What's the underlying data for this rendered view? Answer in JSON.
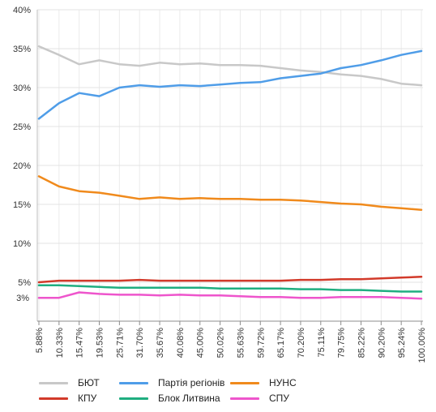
{
  "chart_data": {
    "type": "line",
    "title": "",
    "xlabel": "",
    "ylabel": "",
    "ylim": [
      0,
      40
    ],
    "y_ticks": [
      5,
      10,
      15,
      20,
      25,
      30,
      35,
      40
    ],
    "y_tick_labels": [
      "5%",
      "10%",
      "15%",
      "20%",
      "25%",
      "30%",
      "35%",
      "40%"
    ],
    "y_annotation": {
      "value": 3,
      "label": "3%"
    },
    "grid": true,
    "legend_position": "bottom",
    "categories": [
      "5.88%",
      "10.33%",
      "15.47%",
      "19.53%",
      "25.71%",
      "31.70%",
      "35.67%",
      "40.08%",
      "45.00%",
      "50.02%",
      "55.63%",
      "59.72%",
      "65.17%",
      "70.20%",
      "75.11%",
      "79.75%",
      "85.22%",
      "90.20%",
      "95.24%",
      "100.00%"
    ],
    "series": [
      {
        "name": "БЮТ",
        "color": "#c8c8c8",
        "values": [
          35.3,
          34.2,
          33.0,
          33.5,
          33.0,
          32.8,
          33.2,
          33.0,
          33.1,
          32.9,
          32.9,
          32.8,
          32.5,
          32.2,
          32.0,
          31.7,
          31.5,
          31.1,
          30.5,
          30.3
        ]
      },
      {
        "name": "Партія регіонів",
        "color": "#4f9de8",
        "values": [
          26.0,
          28.0,
          29.3,
          28.9,
          30.0,
          30.3,
          30.1,
          30.3,
          30.2,
          30.4,
          30.6,
          30.7,
          31.2,
          31.5,
          31.8,
          32.5,
          32.9,
          33.5,
          34.2,
          34.7
        ]
      },
      {
        "name": "НУНС",
        "color": "#f08a1c",
        "values": [
          18.6,
          17.3,
          16.7,
          16.5,
          16.1,
          15.7,
          15.9,
          15.7,
          15.8,
          15.7,
          15.7,
          15.6,
          15.6,
          15.5,
          15.3,
          15.1,
          15.0,
          14.7,
          14.5,
          14.3
        ]
      },
      {
        "name": "КПУ",
        "color": "#d23a2a",
        "values": [
          5.0,
          5.2,
          5.2,
          5.2,
          5.2,
          5.3,
          5.2,
          5.2,
          5.2,
          5.2,
          5.2,
          5.2,
          5.2,
          5.3,
          5.3,
          5.4,
          5.4,
          5.5,
          5.6,
          5.7
        ]
      },
      {
        "name": "Блок Литвина",
        "color": "#1fae80",
        "values": [
          4.6,
          4.6,
          4.5,
          4.4,
          4.3,
          4.3,
          4.3,
          4.3,
          4.3,
          4.2,
          4.2,
          4.2,
          4.2,
          4.1,
          4.1,
          4.0,
          4.0,
          3.9,
          3.8,
          3.8
        ]
      },
      {
        "name": "СПУ",
        "color": "#ee55cc",
        "values": [
          3.0,
          3.0,
          3.7,
          3.5,
          3.4,
          3.4,
          3.3,
          3.4,
          3.3,
          3.3,
          3.2,
          3.1,
          3.1,
          3.0,
          3.0,
          3.1,
          3.1,
          3.1,
          3.0,
          2.9
        ]
      }
    ]
  }
}
